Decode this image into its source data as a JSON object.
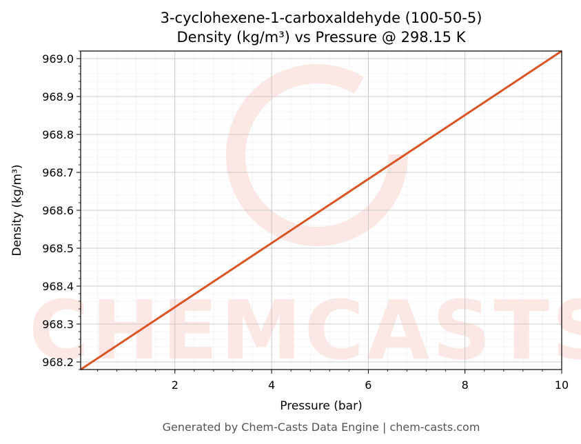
{
  "chart_data": {
    "type": "line",
    "title_lines": [
      "3-cyclohexene-1-carboxaldehyde (100-50-5)",
      "Density (kg/m³) vs Pressure @ 298.15 K"
    ],
    "xlabel": "Pressure (bar)",
    "ylabel": "Density (kg/m³)",
    "xlim": [
      0.05,
      10
    ],
    "ylim": [
      968.18,
      969.02
    ],
    "x_ticks": [
      2,
      4,
      6,
      8,
      10
    ],
    "x_tick_labels": [
      "2",
      "4",
      "6",
      "8",
      "10"
    ],
    "y_ticks": [
      968.2,
      968.3,
      968.4,
      968.5,
      968.6,
      968.7,
      968.8,
      968.9,
      969.0
    ],
    "y_tick_labels": [
      "968.2",
      "968.3",
      "968.4",
      "968.5",
      "968.6",
      "968.7",
      "968.8",
      "968.9",
      "969.0"
    ],
    "grid": true,
    "series": [
      {
        "color": "#d95424",
        "x": [
          0.05,
          10
        ],
        "y": [
          968.18,
          969.02
        ]
      }
    ]
  },
  "watermark": {
    "text": "CHEMCASTS",
    "color": "#fde7e4"
  },
  "footer": {
    "text": "Generated by Chem-Casts Data Engine | chem-casts.com"
  }
}
